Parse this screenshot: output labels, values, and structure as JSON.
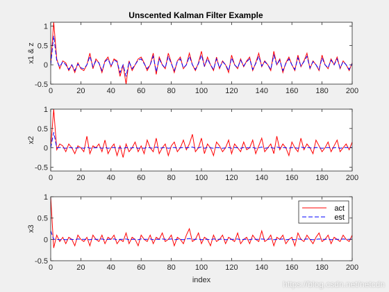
{
  "figure": {
    "title": "Unscented Kalman Filter Example",
    "xlabel": "index",
    "watermark": "https://blog.csdn.net/netcdn"
  },
  "colors": {
    "act": "#ff0000",
    "est": "#0000ff",
    "axes_bg": "#ffffff",
    "figure_bg": "#f0f0f0",
    "axis": "#262626"
  },
  "chart_data": [
    {
      "type": "line",
      "ylabel": "x1 & z",
      "xlim": [
        0,
        200
      ],
      "ylim": [
        -0.5,
        1.1
      ],
      "xticks": [
        0,
        20,
        40,
        60,
        80,
        100,
        120,
        140,
        160,
        180,
        200
      ],
      "yticks": [
        -0.5,
        0,
        0.5,
        1
      ],
      "x": [
        0,
        2,
        4,
        6,
        8,
        10,
        12,
        14,
        16,
        18,
        20,
        22,
        24,
        26,
        28,
        30,
        32,
        34,
        36,
        38,
        40,
        42,
        44,
        46,
        48,
        50,
        52,
        54,
        56,
        58,
        60,
        62,
        64,
        66,
        68,
        70,
        72,
        74,
        76,
        78,
        80,
        82,
        84,
        86,
        88,
        90,
        92,
        94,
        96,
        98,
        100,
        102,
        104,
        106,
        108,
        110,
        112,
        114,
        116,
        118,
        120,
        122,
        124,
        126,
        128,
        130,
        132,
        134,
        136,
        138,
        140,
        142,
        144,
        146,
        148,
        150,
        152,
        154,
        156,
        158,
        160,
        162,
        164,
        166,
        168,
        170,
        172,
        174,
        176,
        178,
        180,
        182,
        184,
        186,
        188,
        190,
        192,
        194,
        196,
        198,
        200
      ],
      "series": [
        {
          "name": "act",
          "style": "solid",
          "values": [
            0.0,
            1.1,
            0.15,
            -0.1,
            0.1,
            0.05,
            -0.15,
            0.0,
            -0.2,
            0.05,
            -0.1,
            -0.15,
            0.0,
            0.3,
            -0.1,
            0.15,
            0.05,
            -0.2,
            0.1,
            0.2,
            -0.05,
            0.15,
            0.1,
            -0.3,
            0.0,
            -0.5,
            0.1,
            -0.15,
            0.0,
            0.15,
            0.2,
            0.05,
            -0.15,
            0.0,
            0.3,
            -0.25,
            0.2,
            0.0,
            -0.1,
            0.3,
            0.05,
            -0.2,
            0.1,
            0.2,
            -0.1,
            0.0,
            0.3,
            0.0,
            -0.15,
            0.05,
            0.35,
            -0.05,
            0.2,
            0.0,
            -0.15,
            0.2,
            -0.1,
            0.1,
            0.0,
            -0.2,
            0.25,
            0.0,
            -0.1,
            0.15,
            -0.05,
            0.1,
            0.2,
            -0.15,
            0.05,
            0.3,
            -0.05,
            0.1,
            0.0,
            -0.15,
            0.35,
            0.0,
            0.15,
            -0.2,
            0.05,
            0.2,
            0.0,
            -0.15,
            0.25,
            -0.05,
            0.1,
            0.3,
            -0.1,
            0.1,
            0.0,
            -0.15,
            0.25,
            0.0,
            -0.1,
            0.15,
            0.0,
            0.2,
            -0.1,
            0.1,
            0.0,
            -0.15,
            0.05
          ]
        },
        {
          "name": "est",
          "style": "dashed",
          "values": [
            0.0,
            0.75,
            0.1,
            -0.05,
            0.08,
            0.0,
            -0.12,
            0.0,
            -0.15,
            0.02,
            -0.08,
            -0.1,
            0.0,
            0.22,
            -0.05,
            0.1,
            0.05,
            -0.15,
            0.08,
            0.15,
            -0.03,
            0.12,
            0.08,
            -0.2,
            0.0,
            -0.3,
            0.08,
            -0.1,
            0.0,
            0.12,
            0.15,
            0.03,
            -0.1,
            0.0,
            0.22,
            -0.18,
            0.15,
            0.0,
            -0.08,
            0.22,
            0.03,
            -0.15,
            0.08,
            0.15,
            -0.08,
            0.0,
            0.22,
            0.0,
            -0.12,
            0.03,
            0.25,
            -0.03,
            0.15,
            0.0,
            -0.12,
            0.15,
            -0.08,
            0.08,
            0.0,
            -0.15,
            0.18,
            0.0,
            -0.08,
            0.12,
            -0.03,
            0.08,
            0.15,
            -0.12,
            0.03,
            0.22,
            -0.03,
            0.08,
            0.0,
            -0.12,
            0.25,
            0.0,
            0.12,
            -0.15,
            0.03,
            0.15,
            0.0,
            -0.12,
            0.18,
            -0.03,
            0.08,
            0.22,
            -0.08,
            0.08,
            0.0,
            -0.12,
            0.18,
            0.0,
            -0.08,
            0.12,
            0.0,
            0.15,
            -0.08,
            0.08,
            0.0,
            -0.12,
            0.03
          ]
        }
      ]
    },
    {
      "type": "line",
      "ylabel": "x2",
      "xlim": [
        0,
        200
      ],
      "ylim": [
        -0.6,
        1.0
      ],
      "xticks": [
        0,
        20,
        40,
        60,
        80,
        100,
        120,
        140,
        160,
        180,
        200
      ],
      "yticks": [
        -0.5,
        0,
        0.5,
        1
      ],
      "x": [
        0,
        2,
        4,
        6,
        8,
        10,
        12,
        14,
        16,
        18,
        20,
        22,
        24,
        26,
        28,
        30,
        32,
        34,
        36,
        38,
        40,
        42,
        44,
        46,
        48,
        50,
        52,
        54,
        56,
        58,
        60,
        62,
        64,
        66,
        68,
        70,
        72,
        74,
        76,
        78,
        80,
        82,
        84,
        86,
        88,
        90,
        92,
        94,
        96,
        98,
        100,
        102,
        104,
        106,
        108,
        110,
        112,
        114,
        116,
        118,
        120,
        122,
        124,
        126,
        128,
        130,
        132,
        134,
        136,
        138,
        140,
        142,
        144,
        146,
        148,
        150,
        152,
        154,
        156,
        158,
        160,
        162,
        164,
        166,
        168,
        170,
        172,
        174,
        176,
        178,
        180,
        182,
        184,
        186,
        188,
        190,
        192,
        194,
        196,
        198,
        200
      ],
      "series": [
        {
          "name": "act",
          "style": "solid",
          "values": [
            0.0,
            1.0,
            -0.05,
            0.1,
            0.05,
            -0.1,
            0.1,
            0.0,
            -0.15,
            0.05,
            0.0,
            -0.1,
            0.3,
            -0.15,
            0.05,
            0.0,
            0.1,
            -0.1,
            0.2,
            -0.15,
            0.0,
            0.1,
            -0.2,
            0.05,
            -0.25,
            0.1,
            -0.1,
            0.0,
            0.15,
            -0.1,
            0.05,
            -0.15,
            0.2,
            0.0,
            -0.1,
            0.25,
            -0.15,
            0.0,
            0.1,
            -0.2,
            0.05,
            0.15,
            -0.1,
            0.0,
            0.2,
            -0.05,
            0.1,
            0.35,
            -0.1,
            0.0,
            0.25,
            -0.15,
            0.1,
            0.0,
            -0.2,
            0.15,
            0.05,
            -0.1,
            0.0,
            0.2,
            -0.15,
            0.1,
            0.0,
            -0.1,
            0.15,
            -0.05,
            0.0,
            0.2,
            -0.15,
            0.05,
            0.25,
            -0.1,
            0.0,
            0.1,
            -0.15,
            0.3,
            -0.05,
            0.1,
            0.0,
            -0.2,
            0.15,
            0.0,
            -0.1,
            0.25,
            -0.05,
            0.1,
            0.0,
            -0.15,
            0.2,
            0.05,
            -0.1,
            0.0,
            0.15,
            -0.1,
            0.05,
            0.2,
            -0.1,
            0.0,
            0.1,
            -0.05,
            0.15
          ]
        },
        {
          "name": "est",
          "style": "dashed",
          "values": [
            0.0,
            0.4,
            0.0,
            0.01,
            0.0,
            -0.01,
            0.01,
            0.0,
            -0.01,
            0.0,
            0.0,
            -0.01,
            0.02,
            -0.01,
            0.0,
            0.0,
            0.01,
            -0.01,
            0.01,
            -0.01,
            0.0,
            0.01,
            -0.01,
            0.0,
            -0.02,
            0.01,
            -0.01,
            0.0,
            0.01,
            -0.01,
            0.0,
            -0.01,
            0.01,
            0.0,
            -0.01,
            0.02,
            -0.01,
            0.0,
            0.01,
            -0.01,
            0.0,
            0.01,
            -0.01,
            0.0,
            0.01,
            0.0,
            0.01,
            0.02,
            -0.01,
            0.0,
            0.02,
            -0.01,
            0.01,
            0.0,
            -0.01,
            0.01,
            0.0,
            -0.01,
            0.0,
            0.01,
            -0.01,
            0.01,
            0.0,
            -0.01,
            0.01,
            0.0,
            0.0,
            0.01,
            -0.01,
            0.0,
            0.02,
            -0.01,
            0.0,
            0.01,
            -0.01,
            0.02,
            0.0,
            0.01,
            0.0,
            -0.01,
            0.01,
            0.0,
            -0.01,
            0.02,
            0.0,
            0.01,
            0.0,
            -0.01,
            0.01,
            0.0,
            -0.01,
            0.0,
            0.01,
            -0.01,
            0.0,
            0.01,
            -0.01,
            0.0,
            0.01,
            0.0,
            0.01
          ]
        }
      ]
    },
    {
      "type": "line",
      "ylabel": "x3",
      "xlim": [
        0,
        200
      ],
      "ylim": [
        -0.5,
        1.0
      ],
      "xticks": [
        0,
        20,
        40,
        60,
        80,
        100,
        120,
        140,
        160,
        180,
        200
      ],
      "yticks": [
        -0.5,
        0,
        0.5,
        1
      ],
      "legend": {
        "position": "top-right",
        "entries": [
          "act",
          "est"
        ]
      },
      "x": [
        0,
        2,
        4,
        6,
        8,
        10,
        12,
        14,
        16,
        18,
        20,
        22,
        24,
        26,
        28,
        30,
        32,
        34,
        36,
        38,
        40,
        42,
        44,
        46,
        48,
        50,
        52,
        54,
        56,
        58,
        60,
        62,
        64,
        66,
        68,
        70,
        72,
        74,
        76,
        78,
        80,
        82,
        84,
        86,
        88,
        90,
        92,
        94,
        96,
        98,
        100,
        102,
        104,
        106,
        108,
        110,
        112,
        114,
        116,
        118,
        120,
        122,
        124,
        126,
        128,
        130,
        132,
        134,
        136,
        138,
        140,
        142,
        144,
        146,
        148,
        150,
        152,
        154,
        156,
        158,
        160,
        162,
        164,
        166,
        168,
        170,
        172,
        174,
        176,
        178,
        180,
        182,
        184,
        186,
        188,
        190,
        192,
        194,
        196,
        198,
        200
      ],
      "series": [
        {
          "name": "act",
          "style": "solid",
          "values": [
            1.0,
            -0.2,
            0.1,
            -0.05,
            0.05,
            -0.1,
            0.05,
            0.0,
            -0.15,
            0.1,
            0.0,
            -0.05,
            0.05,
            -0.15,
            0.1,
            0.0,
            -0.05,
            0.1,
            -0.1,
            0.05,
            0.0,
            0.1,
            -0.1,
            0.0,
            -0.05,
            0.15,
            -0.1,
            0.05,
            0.0,
            -0.15,
            0.1,
            0.0,
            -0.05,
            0.1,
            -0.1,
            0.05,
            0.0,
            0.15,
            -0.05,
            0.0,
            0.1,
            -0.15,
            0.05,
            0.0,
            -0.1,
            0.1,
            0.25,
            -0.05,
            0.0,
            0.15,
            -0.1,
            0.05,
            0.0,
            -0.15,
            0.1,
            -0.05,
            0.0,
            0.1,
            -0.1,
            0.05,
            0.0,
            -0.05,
            0.15,
            -0.1,
            0.0,
            0.05,
            -0.1,
            0.1,
            0.0,
            -0.05,
            0.2,
            -0.05,
            0.0,
            0.1,
            -0.15,
            0.05,
            0.0,
            0.1,
            -0.1,
            0.0,
            0.05,
            -0.15,
            0.15,
            0.0,
            -0.05,
            0.1,
            0.0,
            -0.1,
            0.05,
            0.15,
            -0.05,
            0.0,
            0.1,
            -0.1,
            0.05,
            0.0,
            -0.05,
            0.1,
            0.0,
            -0.05,
            0.1
          ]
        },
        {
          "name": "est",
          "style": "dashed",
          "values": [
            0.2,
            0.0,
            0.0,
            -0.01,
            0.0,
            -0.01,
            0.0,
            0.0,
            -0.01,
            0.01,
            0.0,
            0.0,
            0.0,
            -0.01,
            0.01,
            0.0,
            0.0,
            0.01,
            -0.01,
            0.0,
            0.0,
            0.01,
            -0.01,
            0.0,
            0.0,
            0.01,
            -0.01,
            0.0,
            0.0,
            -0.01,
            0.01,
            0.0,
            0.0,
            0.01,
            -0.01,
            0.0,
            0.0,
            0.01,
            0.0,
            0.0,
            0.01,
            -0.01,
            0.0,
            0.0,
            -0.01,
            0.01,
            0.02,
            0.0,
            0.0,
            0.01,
            -0.01,
            0.0,
            0.0,
            -0.01,
            0.01,
            0.0,
            0.0,
            0.01,
            -0.01,
            0.0,
            0.0,
            0.0,
            0.01,
            -0.01,
            0.0,
            0.0,
            -0.01,
            0.01,
            0.0,
            0.0,
            0.01,
            0.0,
            0.0,
            0.01,
            -0.01,
            0.0,
            0.0,
            0.01,
            -0.01,
            0.0,
            0.0,
            -0.01,
            0.01,
            0.0,
            0.0,
            0.01,
            0.0,
            -0.01,
            0.0,
            0.01,
            0.0,
            0.0,
            0.01,
            -0.01,
            0.0,
            0.0,
            0.0,
            0.01,
            0.0,
            0.0,
            0.01
          ]
        }
      ]
    }
  ]
}
